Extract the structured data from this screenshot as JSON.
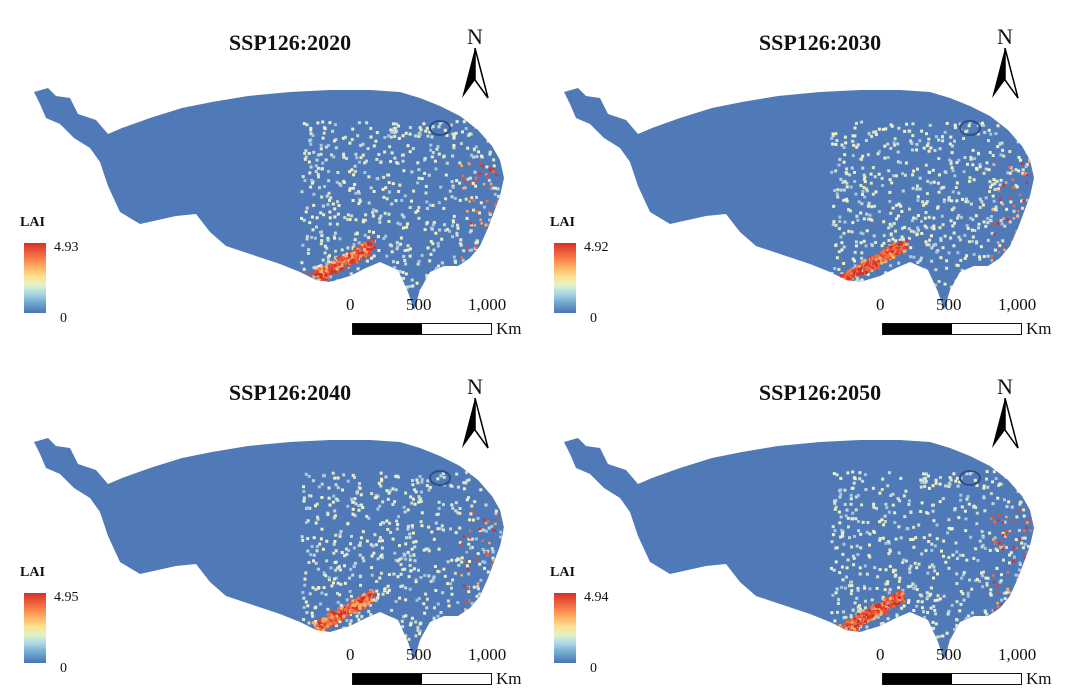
{
  "panels": [
    {
      "title": "SSP126:2020",
      "legend_label": "LAI",
      "legend_max": "4.93",
      "legend_min": "0"
    },
    {
      "title": "SSP126:2030",
      "legend_label": "LAI",
      "legend_max": "4.92",
      "legend_min": "0"
    },
    {
      "title": "SSP126:2040",
      "legend_label": "LAI",
      "legend_max": "4.95",
      "legend_min": "0"
    },
    {
      "title": "SSP126:2050",
      "legend_label": "LAI",
      "legend_max": "4.94",
      "legend_min": "0"
    }
  ],
  "north_arrow": "N",
  "scale_bar": {
    "ticks": [
      "0",
      "500",
      "1,000"
    ],
    "unit": "Km"
  },
  "colors": {
    "low": "#4a74b4",
    "mid": "#e8eecb",
    "high": "#d73027",
    "region_fill": "#5079b8"
  }
}
